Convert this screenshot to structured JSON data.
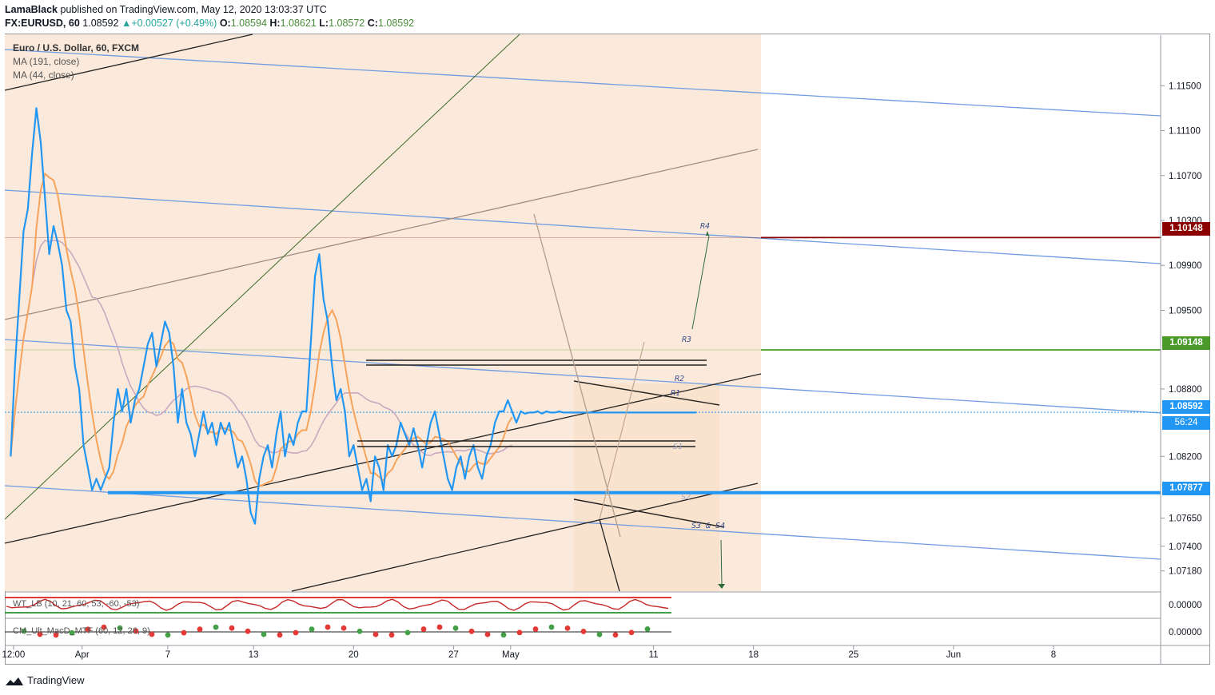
{
  "header": {
    "author": "LamaBlack",
    "published_text": "published on TradingView.com, May 12, 2020 13:03:37 UTC",
    "symbol": "FX:EURUSD, 60",
    "last": "1.08592",
    "change_arrow": "▲",
    "change": "+0.00527 (+0.49%)",
    "o_label": "O:",
    "o_value": "1.08594",
    "h_label": "H:",
    "h_value": "1.08621",
    "l_label": "L:",
    "l_value": "1.08572",
    "c_label": "C:",
    "c_value": "1.08592"
  },
  "legend": {
    "title": "Euro / U.S. Dollar, 60, FXCM",
    "ma1": "MA (191, close)",
    "ma2": "MA (44, close)",
    "ind1": "WT_LB (10, 21, 60, 53, -60, -53)",
    "ind2": "CM_Ult_MacD_MTF (60, 12, 26, 9)"
  },
  "badges": {
    "r4_level": "1.10148",
    "r3_level": "1.09148",
    "last_price": "1.08592",
    "countdown": "56:24",
    "support": "1.07877"
  },
  "colors": {
    "price": "#2196f3",
    "ma44": "#f7a35c",
    "ma191": "#c9a8c0",
    "red_level": "#8b0000",
    "green_level": "#4a9a2a",
    "support": "#2196f3",
    "channel": "#6f9be0",
    "shade": "#fbe6d2"
  },
  "annotations": {
    "r4": "R4",
    "r3": "R3",
    "r2": "R2",
    "r1": "R1",
    "s1": "S1",
    "s2": "S2",
    "s34": "S3 & S4"
  },
  "footer": {
    "brand": "TradingView"
  },
  "chart_data": {
    "type": "line",
    "ylim": [
      1.07,
      1.1195
    ],
    "y_ticks": [
      1.115,
      1.111,
      1.107,
      1.103,
      1.099,
      1.095,
      1.088,
      1.082,
      1.0765,
      1.074,
      1.0718
    ],
    "y_tick_labels": [
      "1.11500",
      "1.11100",
      "1.10700",
      "1.10300",
      "1.09900",
      "1.09500",
      "1.08800",
      "1.08200",
      "1.07650",
      "1.07400",
      "1.07180"
    ],
    "x_ticks": [
      {
        "label": "12:00",
        "day": 0.2
      },
      {
        "label": "Apr",
        "day": 5
      },
      {
        "label": "7",
        "day": 11
      },
      {
        "label": "13",
        "day": 17
      },
      {
        "label": "20",
        "day": 24
      },
      {
        "label": "27",
        "day": 31
      },
      {
        "label": "May",
        "day": 35
      },
      {
        "label": "11",
        "day": 45
      },
      {
        "label": "18",
        "day": 52
      },
      {
        "label": "25",
        "day": 59
      },
      {
        "label": "Jun",
        "day": 66
      },
      {
        "label": "8",
        "day": 73
      }
    ],
    "levels": [
      {
        "name": "R4 level",
        "value": 1.10148
      },
      {
        "name": "R3 level",
        "value": 1.09148
      },
      {
        "name": "Support",
        "value": 1.07877
      },
      {
        "name": "Last",
        "value": 1.08592
      }
    ],
    "indicator_ticks": [
      "0.00000",
      "0.00000"
    ],
    "series": [
      {
        "name": "Euro / U.S. Dollar",
        "x": [
          0.0,
          0.3,
          0.6,
          0.9,
          1.2,
          1.5,
          1.8,
          2.1,
          2.4,
          2.7,
          3.0,
          3.3,
          3.6,
          3.9,
          4.2,
          4.5,
          4.8,
          5.1,
          5.4,
          5.7,
          6.0,
          6.3,
          6.6,
          6.9,
          7.2,
          7.5,
          7.8,
          8.1,
          8.4,
          8.7,
          9.0,
          9.3,
          9.6,
          9.9,
          10.2,
          10.5,
          10.8,
          11.1,
          11.4,
          11.7,
          12.0,
          12.3,
          12.6,
          12.9,
          13.2,
          13.5,
          13.8,
          14.1,
          14.4,
          14.7,
          15.0,
          15.3,
          15.6,
          15.9,
          16.2,
          16.5,
          16.8,
          17.1,
          17.4,
          17.7,
          18.0,
          18.3,
          18.6,
          18.9,
          19.2,
          19.5,
          19.8,
          20.1,
          20.4,
          20.7,
          21.0,
          21.3,
          21.6,
          21.9,
          22.2,
          22.5,
          22.8,
          23.1,
          23.4,
          23.7,
          24.0,
          24.3,
          24.6,
          24.9,
          25.2,
          25.5,
          25.8,
          26.1,
          26.4,
          26.7,
          27.0,
          27.3,
          27.6,
          27.9,
          28.2,
          28.5,
          28.8,
          29.1,
          29.4,
          29.7,
          30.0,
          30.3,
          30.6,
          30.9,
          31.2,
          31.5,
          31.8,
          32.1,
          32.4,
          32.7,
          33.0,
          33.3,
          33.6,
          33.9,
          34.2,
          34.5,
          34.8,
          35.1,
          35.4,
          35.7,
          36.0,
          36.3,
          36.6,
          36.9,
          37.2,
          37.5,
          37.8,
          38.1,
          38.4,
          38.7,
          39.0,
          39.3,
          39.6,
          39.9,
          40.2,
          40.5,
          40.8,
          41.1,
          41.4,
          41.7,
          42.0,
          42.3,
          42.6,
          42.9,
          43.2,
          43.5,
          43.8,
          44.1,
          44.4,
          44.7,
          45.0,
          45.3,
          45.6,
          45.9,
          46.2,
          46.5,
          46.8,
          47.1,
          47.4,
          47.7,
          48.0
        ],
        "values": [
          1.082,
          1.09,
          1.096,
          1.102,
          1.104,
          1.109,
          1.113,
          1.11,
          1.105,
          1.1,
          1.1025,
          1.101,
          1.099,
          1.095,
          1.094,
          1.09,
          1.088,
          1.083,
          1.081,
          1.079,
          1.08,
          1.079,
          1.08,
          1.081,
          1.085,
          1.088,
          1.086,
          1.088,
          1.085,
          1.087,
          1.088,
          1.09,
          1.092,
          1.093,
          1.09,
          1.092,
          1.094,
          1.093,
          1.09,
          1.085,
          1.088,
          1.085,
          1.084,
          1.082,
          1.084,
          1.086,
          1.084,
          1.085,
          1.083,
          1.085,
          1.084,
          1.085,
          1.083,
          1.081,
          1.082,
          1.08,
          1.077,
          1.076,
          1.08,
          1.082,
          1.083,
          1.081,
          1.084,
          1.086,
          1.082,
          1.084,
          1.083,
          1.085,
          1.086,
          1.086,
          1.092,
          1.098,
          1.1,
          1.096,
          1.094,
          1.09,
          1.087,
          1.088,
          1.086,
          1.082,
          1.083,
          1.081,
          1.079,
          1.08,
          1.078,
          1.082,
          1.081,
          1.079,
          1.083,
          1.082,
          1.083,
          1.085,
          1.084,
          1.083,
          1.0845,
          1.083,
          1.081,
          1.083,
          1.085,
          1.086,
          1.084,
          1.082,
          1.08,
          1.079,
          1.081,
          1.082,
          1.08,
          1.082,
          1.083,
          1.081,
          1.08,
          1.082,
          1.083,
          1.085,
          1.086,
          1.086,
          1.087,
          1.086,
          1.085,
          1.086,
          1.0858,
          1.0859,
          1.0859,
          1.086,
          1.0858,
          1.086,
          1.0859,
          1.0859,
          1.086,
          1.0859,
          1.0859,
          1.0859,
          1.0859,
          1.0859,
          1.0859,
          1.0859,
          1.0859,
          1.0859,
          1.0859,
          1.0859,
          1.0859,
          1.0859,
          1.0859,
          1.0859,
          1.0859,
          1.0859,
          1.0859,
          1.0859,
          1.0859,
          1.0859,
          1.0859,
          1.0859,
          1.0859,
          1.0859,
          1.0859,
          1.0859,
          1.0859,
          1.0859,
          1.0859,
          1.0859,
          1.0859
        ]
      }
    ]
  }
}
